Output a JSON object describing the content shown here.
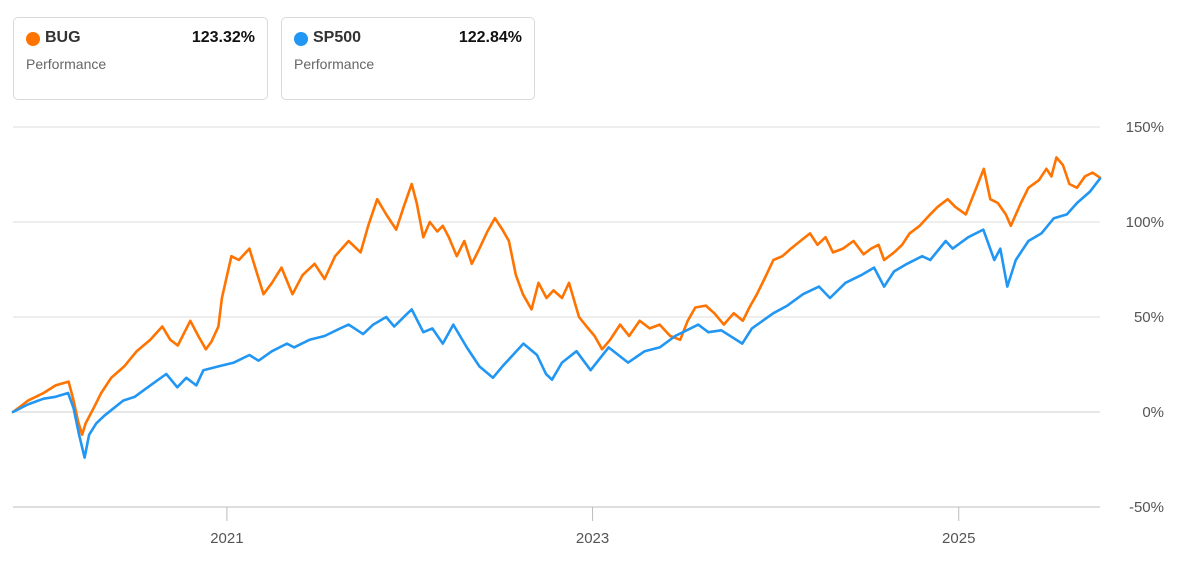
{
  "legend": [
    {
      "ticker": "BUG",
      "value": "123.32%",
      "caption": "Performance",
      "color": "#ff7300"
    },
    {
      "ticker": "SP500",
      "value": "122.84%",
      "caption": "Performance",
      "color": "#2196f3"
    }
  ],
  "chart_data": {
    "type": "line",
    "title": "",
    "xlabel": "",
    "ylabel": "",
    "y_unit": "%",
    "ylim": [
      -50,
      150
    ],
    "xlim": [
      "2019-11-01",
      "2025-10-10"
    ],
    "y_ticks": [
      "150%",
      "100%",
      "50%",
      "0%",
      "-50%"
    ],
    "y_tick_values": [
      150,
      100,
      50,
      0,
      -50
    ],
    "x_ticks": [
      "2021",
      "2023",
      "2025"
    ],
    "x_tick_dates": [
      "2021-01-01",
      "2023-01-01",
      "2025-01-01"
    ],
    "grid": true,
    "legend_position": "top-left",
    "series": [
      {
        "name": "BUG",
        "color": "#ff7300",
        "points": [
          [
            "2019-11-01",
            0
          ],
          [
            "2019-12-01",
            6
          ],
          [
            "2020-01-01",
            10
          ],
          [
            "2020-01-25",
            14
          ],
          [
            "2020-02-20",
            16
          ],
          [
            "2020-03-01",
            6
          ],
          [
            "2020-03-10",
            -5
          ],
          [
            "2020-03-18",
            -12
          ],
          [
            "2020-03-25",
            -6
          ],
          [
            "2020-04-10",
            2
          ],
          [
            "2020-04-25",
            10
          ],
          [
            "2020-05-15",
            18
          ],
          [
            "2020-06-10",
            24
          ],
          [
            "2020-07-05",
            32
          ],
          [
            "2020-08-01",
            38
          ],
          [
            "2020-08-25",
            45
          ],
          [
            "2020-09-10",
            38
          ],
          [
            "2020-09-25",
            35
          ],
          [
            "2020-10-20",
            48
          ],
          [
            "2020-11-05",
            40
          ],
          [
            "2020-11-20",
            33
          ],
          [
            "2020-12-01",
            37
          ],
          [
            "2020-12-15",
            45
          ],
          [
            "2020-12-22",
            60
          ],
          [
            "2021-01-10",
            82
          ],
          [
            "2021-01-25",
            80
          ],
          [
            "2021-02-15",
            86
          ],
          [
            "2021-03-01",
            74
          ],
          [
            "2021-03-15",
            62
          ],
          [
            "2021-04-01",
            68
          ],
          [
            "2021-04-20",
            76
          ],
          [
            "2021-05-12",
            62
          ],
          [
            "2021-06-01",
            72
          ],
          [
            "2021-06-25",
            78
          ],
          [
            "2021-07-15",
            70
          ],
          [
            "2021-08-05",
            82
          ],
          [
            "2021-09-01",
            90
          ],
          [
            "2021-09-25",
            84
          ],
          [
            "2021-10-10",
            98
          ],
          [
            "2021-10-28",
            112
          ],
          [
            "2021-11-15",
            104
          ],
          [
            "2021-12-05",
            96
          ],
          [
            "2021-12-20",
            108
          ],
          [
            "2022-01-05",
            120
          ],
          [
            "2022-01-15",
            110
          ],
          [
            "2022-01-28",
            92
          ],
          [
            "2022-02-10",
            100
          ],
          [
            "2022-02-25",
            95
          ],
          [
            "2022-03-08",
            98
          ],
          [
            "2022-03-20",
            92
          ],
          [
            "2022-04-05",
            82
          ],
          [
            "2022-04-20",
            90
          ],
          [
            "2022-05-05",
            78
          ],
          [
            "2022-05-20",
            86
          ],
          [
            "2022-06-05",
            95
          ],
          [
            "2022-06-20",
            102
          ],
          [
            "2022-07-05",
            96
          ],
          [
            "2022-07-18",
            90
          ],
          [
            "2022-08-01",
            72
          ],
          [
            "2022-08-15",
            62
          ],
          [
            "2022-09-01",
            54
          ],
          [
            "2022-09-15",
            68
          ],
          [
            "2022-10-01",
            60
          ],
          [
            "2022-10-15",
            64
          ],
          [
            "2022-11-01",
            60
          ],
          [
            "2022-11-15",
            68
          ],
          [
            "2022-12-05",
            50
          ],
          [
            "2022-12-20",
            45
          ],
          [
            "2023-01-05",
            40
          ],
          [
            "2023-01-20",
            33
          ],
          [
            "2023-02-05",
            38
          ],
          [
            "2023-02-25",
            46
          ],
          [
            "2023-03-15",
            40
          ],
          [
            "2023-04-05",
            48
          ],
          [
            "2023-04-25",
            44
          ],
          [
            "2023-05-15",
            46
          ],
          [
            "2023-06-05",
            40
          ],
          [
            "2023-06-25",
            38
          ],
          [
            "2023-07-10",
            48
          ],
          [
            "2023-07-25",
            55
          ],
          [
            "2023-08-15",
            56
          ],
          [
            "2023-09-01",
            52
          ],
          [
            "2023-09-20",
            46
          ],
          [
            "2023-10-10",
            52
          ],
          [
            "2023-10-28",
            48
          ],
          [
            "2023-11-10",
            55
          ],
          [
            "2023-11-25",
            62
          ],
          [
            "2023-12-10",
            70
          ],
          [
            "2023-12-28",
            80
          ],
          [
            "2024-01-15",
            82
          ],
          [
            "2024-02-01",
            86
          ],
          [
            "2024-02-20",
            90
          ],
          [
            "2024-03-10",
            94
          ],
          [
            "2024-03-25",
            88
          ],
          [
            "2024-04-10",
            92
          ],
          [
            "2024-04-25",
            84
          ],
          [
            "2024-05-15",
            86
          ],
          [
            "2024-06-05",
            90
          ],
          [
            "2024-06-25",
            83
          ],
          [
            "2024-07-10",
            86
          ],
          [
            "2024-07-25",
            88
          ],
          [
            "2024-08-05",
            80
          ],
          [
            "2024-08-25",
            84
          ],
          [
            "2024-09-10",
            88
          ],
          [
            "2024-09-25",
            94
          ],
          [
            "2024-10-15",
            98
          ],
          [
            "2024-11-05",
            104
          ],
          [
            "2024-11-20",
            108
          ],
          [
            "2024-12-10",
            112
          ],
          [
            "2024-12-25",
            108
          ],
          [
            "2025-01-15",
            104
          ],
          [
            "2025-02-05",
            118
          ],
          [
            "2025-02-20",
            128
          ],
          [
            "2025-03-05",
            112
          ],
          [
            "2025-03-20",
            110
          ],
          [
            "2025-04-05",
            104
          ],
          [
            "2025-04-15",
            98
          ],
          [
            "2025-05-05",
            110
          ],
          [
            "2025-05-20",
            118
          ],
          [
            "2025-06-10",
            122
          ],
          [
            "2025-06-25",
            128
          ],
          [
            "2025-07-05",
            124
          ],
          [
            "2025-07-15",
            134
          ],
          [
            "2025-07-28",
            130
          ],
          [
            "2025-08-10",
            120
          ],
          [
            "2025-08-25",
            118
          ],
          [
            "2025-09-10",
            124
          ],
          [
            "2025-09-25",
            126
          ],
          [
            "2025-10-10",
            123.32
          ]
        ]
      },
      {
        "name": "SP500",
        "color": "#2196f3",
        "points": [
          [
            "2019-11-01",
            0
          ],
          [
            "2019-12-01",
            4
          ],
          [
            "2020-01-01",
            7
          ],
          [
            "2020-01-25",
            8
          ],
          [
            "2020-02-19",
            10
          ],
          [
            "2020-03-01",
            2
          ],
          [
            "2020-03-12",
            -12
          ],
          [
            "2020-03-23",
            -24
          ],
          [
            "2020-04-01",
            -12
          ],
          [
            "2020-04-15",
            -6
          ],
          [
            "2020-05-01",
            -2
          ],
          [
            "2020-05-20",
            2
          ],
          [
            "2020-06-08",
            6
          ],
          [
            "2020-07-01",
            8
          ],
          [
            "2020-08-01",
            14
          ],
          [
            "2020-09-02",
            20
          ],
          [
            "2020-09-24",
            13
          ],
          [
            "2020-10-12",
            18
          ],
          [
            "2020-11-01",
            14
          ],
          [
            "2020-11-15",
            22
          ],
          [
            "2020-12-15",
            24
          ],
          [
            "2021-01-15",
            26
          ],
          [
            "2021-02-15",
            30
          ],
          [
            "2021-03-05",
            27
          ],
          [
            "2021-04-01",
            32
          ],
          [
            "2021-05-01",
            36
          ],
          [
            "2021-05-15",
            34
          ],
          [
            "2021-06-15",
            38
          ],
          [
            "2021-07-15",
            40
          ],
          [
            "2021-08-15",
            44
          ],
          [
            "2021-09-01",
            46
          ],
          [
            "2021-09-30",
            41
          ],
          [
            "2021-10-20",
            46
          ],
          [
            "2021-11-15",
            50
          ],
          [
            "2021-12-01",
            45
          ],
          [
            "2021-12-28",
            52
          ],
          [
            "2022-01-05",
            54
          ],
          [
            "2022-01-28",
            42
          ],
          [
            "2022-02-15",
            44
          ],
          [
            "2022-03-08",
            36
          ],
          [
            "2022-03-29",
            46
          ],
          [
            "2022-04-25",
            34
          ],
          [
            "2022-05-20",
            24
          ],
          [
            "2022-06-16",
            18
          ],
          [
            "2022-07-05",
            24
          ],
          [
            "2022-08-16",
            36
          ],
          [
            "2022-09-12",
            30
          ],
          [
            "2022-09-30",
            20
          ],
          [
            "2022-10-12",
            17
          ],
          [
            "2022-11-01",
            26
          ],
          [
            "2022-11-30",
            32
          ],
          [
            "2022-12-28",
            22
          ],
          [
            "2023-01-15",
            28
          ],
          [
            "2023-02-02",
            34
          ],
          [
            "2023-03-13",
            26
          ],
          [
            "2023-04-15",
            32
          ],
          [
            "2023-05-15",
            34
          ],
          [
            "2023-06-15",
            40
          ],
          [
            "2023-07-31",
            46
          ],
          [
            "2023-08-20",
            42
          ],
          [
            "2023-09-15",
            43
          ],
          [
            "2023-10-27",
            36
          ],
          [
            "2023-11-15",
            44
          ],
          [
            "2023-12-28",
            52
          ],
          [
            "2024-01-25",
            56
          ],
          [
            "2024-02-25",
            62
          ],
          [
            "2024-03-28",
            66
          ],
          [
            "2024-04-19",
            60
          ],
          [
            "2024-05-20",
            68
          ],
          [
            "2024-06-20",
            72
          ],
          [
            "2024-07-16",
            76
          ],
          [
            "2024-08-05",
            66
          ],
          [
            "2024-08-25",
            74
          ],
          [
            "2024-09-20",
            78
          ],
          [
            "2024-10-20",
            82
          ],
          [
            "2024-11-05",
            80
          ],
          [
            "2024-12-06",
            90
          ],
          [
            "2024-12-20",
            86
          ],
          [
            "2025-01-20",
            92
          ],
          [
            "2025-02-19",
            96
          ],
          [
            "2025-03-13",
            80
          ],
          [
            "2025-03-25",
            86
          ],
          [
            "2025-04-08",
            66
          ],
          [
            "2025-04-25",
            80
          ],
          [
            "2025-05-20",
            90
          ],
          [
            "2025-06-15",
            94
          ],
          [
            "2025-07-10",
            102
          ],
          [
            "2025-08-05",
            104
          ],
          [
            "2025-08-25",
            110
          ],
          [
            "2025-09-20",
            116
          ],
          [
            "2025-10-10",
            122.84
          ]
        ]
      }
    ]
  }
}
